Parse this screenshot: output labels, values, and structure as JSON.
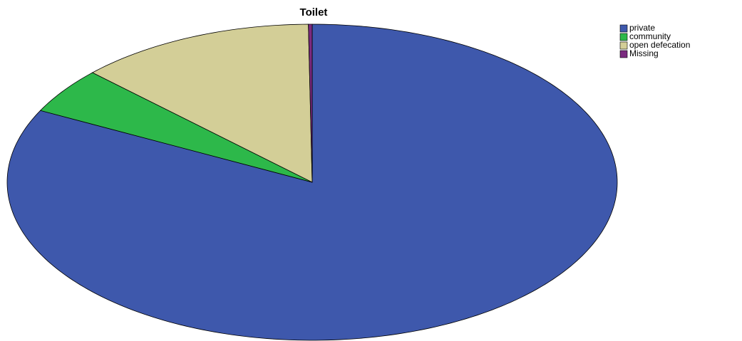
{
  "chart_data": {
    "type": "pie",
    "title": "Toilet",
    "categories": [
      "private",
      "community",
      "open defecation",
      "Missing"
    ],
    "values": [
      82.5,
      4.7,
      12.6,
      0.2
    ],
    "colors": [
      "#3e58ac",
      "#2db84a",
      "#d3ce97",
      "#7b2a7f"
    ],
    "legend": "top-right"
  }
}
